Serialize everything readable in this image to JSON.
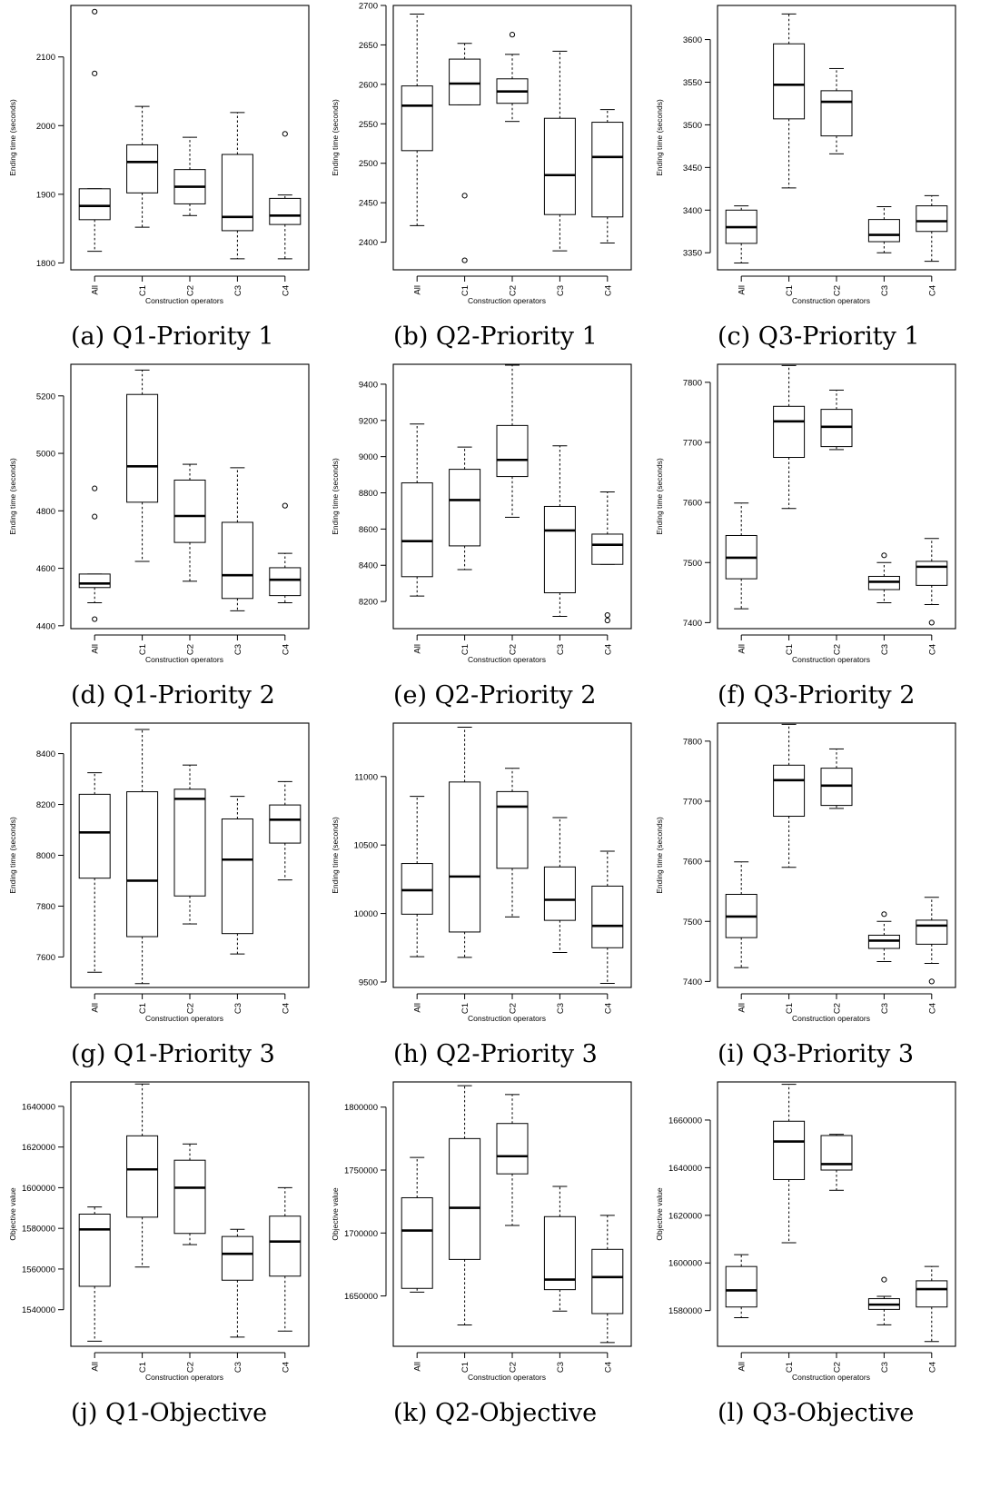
{
  "figure": {
    "panels": [
      {
        "id": "a",
        "caption": "(a) Q1-Priority 1"
      },
      {
        "id": "b",
        "caption": "(b) Q2-Priority 1"
      },
      {
        "id": "c",
        "caption": "(c) Q3-Priority 1"
      },
      {
        "id": "d",
        "caption": "(d) Q1-Priority 2"
      },
      {
        "id": "e",
        "caption": "(e) Q2-Priority 2"
      },
      {
        "id": "f",
        "caption": "(f) Q3-Priority 2"
      },
      {
        "id": "g",
        "caption": "(g) Q1-Priority 3"
      },
      {
        "id": "h",
        "caption": "(h) Q2-Priority 3"
      },
      {
        "id": "i",
        "caption": "(i) Q3-Priority 3"
      },
      {
        "id": "j",
        "caption": "(j) Q1-Objective"
      },
      {
        "id": "k",
        "caption": "(k) Q2-Objective"
      },
      {
        "id": "l",
        "caption": "(l) Q3-Objective"
      }
    ]
  },
  "chart_data": [
    {
      "type": "box",
      "ylabel": "Ending time (seconds)",
      "xlabel": "Construction operators",
      "categories": [
        "All",
        "C1",
        "C2",
        "C3",
        "C4"
      ],
      "ylim": [
        1790,
        2175
      ],
      "yticks": [
        1800,
        1900,
        2000,
        2100
      ],
      "boxes": [
        {
          "whislo": 1817,
          "q1": 1863,
          "med": 1883,
          "q3": 1908,
          "whishi": 1908,
          "fliers": [
            2076,
            2166
          ]
        },
        {
          "whislo": 1852,
          "q1": 1902,
          "med": 1947,
          "q3": 1972,
          "whishi": 2028,
          "fliers": []
        },
        {
          "whislo": 1869,
          "q1": 1886,
          "med": 1911,
          "q3": 1936,
          "whishi": 1983,
          "fliers": []
        },
        {
          "whislo": 1806,
          "q1": 1847,
          "med": 1867,
          "q3": 1958,
          "whishi": 2019,
          "fliers": []
        },
        {
          "whislo": 1806,
          "q1": 1856,
          "med": 1869,
          "q3": 1894,
          "whishi": 1899,
          "fliers": [
            1988
          ]
        }
      ]
    },
    {
      "type": "box",
      "ylabel": "Ending time (seconds)",
      "xlabel": "Construction operators",
      "categories": [
        "All",
        "C1",
        "C2",
        "C3",
        "C4"
      ],
      "ylim": [
        2365,
        2700
      ],
      "yticks": [
        2400,
        2450,
        2500,
        2550,
        2600,
        2650,
        2700
      ],
      "boxes": [
        {
          "whislo": 2421,
          "q1": 2516,
          "med": 2573,
          "q3": 2598,
          "whishi": 2689,
          "fliers": []
        },
        {
          "whislo": 2574,
          "q1": 2574,
          "med": 2601,
          "q3": 2632,
          "whishi": 2652,
          "fliers": [
            2459,
            2377
          ]
        },
        {
          "whislo": 2553,
          "q1": 2576,
          "med": 2591,
          "q3": 2607,
          "whishi": 2638,
          "fliers": [
            2663
          ]
        },
        {
          "whislo": 2389,
          "q1": 2435,
          "med": 2485,
          "q3": 2557,
          "whishi": 2642,
          "fliers": []
        },
        {
          "whislo": 2399,
          "q1": 2432,
          "med": 2508,
          "q3": 2552,
          "whishi": 2568,
          "fliers": []
        }
      ]
    },
    {
      "type": "box",
      "ylabel": "Ending time (seconds)",
      "xlabel": "Construction operators",
      "categories": [
        "All",
        "C1",
        "C2",
        "C3",
        "C4"
      ],
      "ylim": [
        3330,
        3640
      ],
      "yticks": [
        3350,
        3400,
        3450,
        3500,
        3550,
        3600
      ],
      "boxes": [
        {
          "whislo": 3338,
          "q1": 3361,
          "med": 3380,
          "q3": 3400,
          "whishi": 3405,
          "fliers": []
        },
        {
          "whislo": 3426,
          "q1": 3507,
          "med": 3547,
          "q3": 3595,
          "whishi": 3630,
          "fliers": []
        },
        {
          "whislo": 3466,
          "q1": 3487,
          "med": 3527,
          "q3": 3540,
          "whishi": 3566,
          "fliers": []
        },
        {
          "whislo": 3350,
          "q1": 3363,
          "med": 3371,
          "q3": 3389,
          "whishi": 3404,
          "fliers": []
        },
        {
          "whislo": 3340,
          "q1": 3375,
          "med": 3387,
          "q3": 3405,
          "whishi": 3417,
          "fliers": []
        }
      ]
    },
    {
      "type": "box",
      "ylabel": "Ending time (seconds)",
      "xlabel": "Construction operators",
      "categories": [
        "All",
        "C1",
        "C2",
        "C3",
        "C4"
      ],
      "ylim": [
        4390,
        5310
      ],
      "yticks": [
        4400,
        4600,
        4800,
        5000,
        5200
      ],
      "boxes": [
        {
          "whislo": 4480,
          "q1": 4533,
          "med": 4547,
          "q3": 4580,
          "whishi": 4580,
          "fliers": [
            4878,
            4780,
            4423
          ]
        },
        {
          "whislo": 4624,
          "q1": 4830,
          "med": 4955,
          "q3": 5205,
          "whishi": 5290,
          "fliers": []
        },
        {
          "whislo": 4555,
          "q1": 4690,
          "med": 4782,
          "q3": 4907,
          "whishi": 4962,
          "fliers": []
        },
        {
          "whislo": 4452,
          "q1": 4495,
          "med": 4576,
          "q3": 4760,
          "whishi": 4950,
          "fliers": []
        },
        {
          "whislo": 4480,
          "q1": 4505,
          "med": 4560,
          "q3": 4602,
          "whishi": 4652,
          "fliers": [
            4818
          ]
        }
      ]
    },
    {
      "type": "box",
      "ylabel": "Ending time (seconds)",
      "xlabel": "Construction operators",
      "categories": [
        "All",
        "C1",
        "C2",
        "C3",
        "C4"
      ],
      "ylim": [
        8050,
        9510
      ],
      "yticks": [
        8200,
        8400,
        8600,
        8800,
        9000,
        9200,
        9400
      ],
      "boxes": [
        {
          "whislo": 8230,
          "q1": 8337,
          "med": 8533,
          "q3": 8855,
          "whishi": 9180,
          "fliers": []
        },
        {
          "whislo": 8376,
          "q1": 8507,
          "med": 8760,
          "q3": 8930,
          "whishi": 9053,
          "fliers": []
        },
        {
          "whislo": 8665,
          "q1": 8890,
          "med": 8982,
          "q3": 9172,
          "whishi": 9505,
          "fliers": []
        },
        {
          "whislo": 8118,
          "q1": 8248,
          "med": 8592,
          "q3": 8725,
          "whishi": 9060,
          "fliers": []
        },
        {
          "whislo": 8405,
          "q1": 8405,
          "med": 8513,
          "q3": 8572,
          "whishi": 8805,
          "fliers": [
            8125,
            8095
          ]
        }
      ]
    },
    {
      "type": "box",
      "ylabel": "Ending time (seconds)",
      "xlabel": "Construction operators",
      "categories": [
        "All",
        "C1",
        "C2",
        "C3",
        "C4"
      ],
      "ylim": [
        7390,
        7830
      ],
      "yticks": [
        7400,
        7500,
        7600,
        7700,
        7800
      ],
      "boxes": [
        {
          "whislo": 7423,
          "q1": 7473,
          "med": 7508,
          "q3": 7545,
          "whishi": 7599,
          "fliers": []
        },
        {
          "whislo": 7590,
          "q1": 7675,
          "med": 7735,
          "q3": 7760,
          "whishi": 7828,
          "fliers": []
        },
        {
          "whislo": 7688,
          "q1": 7693,
          "med": 7726,
          "q3": 7755,
          "whishi": 7787,
          "fliers": []
        },
        {
          "whislo": 7433,
          "q1": 7455,
          "med": 7468,
          "q3": 7477,
          "whishi": 7500,
          "fliers": [
            7512
          ]
        },
        {
          "whislo": 7430,
          "q1": 7462,
          "med": 7493,
          "q3": 7502,
          "whishi": 7540,
          "fliers": [
            7400
          ]
        }
      ]
    },
    {
      "type": "box",
      "ylabel": "Ending time (seconds)",
      "xlabel": "Construction operators",
      "categories": [
        "All",
        "C1",
        "C2",
        "C3",
        "C4"
      ],
      "ylim": [
        7480,
        8520
      ],
      "yticks": [
        7600,
        7800,
        8000,
        8200,
        8400
      ],
      "boxes": [
        {
          "whislo": 7540,
          "q1": 7910,
          "med": 8090,
          "q3": 8240,
          "whishi": 8325,
          "fliers": []
        },
        {
          "whislo": 7495,
          "q1": 7680,
          "med": 7900,
          "q3": 8250,
          "whishi": 8495,
          "fliers": []
        },
        {
          "whislo": 7730,
          "q1": 7840,
          "med": 8222,
          "q3": 8260,
          "whishi": 8355,
          "fliers": []
        },
        {
          "whislo": 7612,
          "q1": 7692,
          "med": 7983,
          "q3": 8143,
          "whishi": 8232,
          "fliers": []
        },
        {
          "whislo": 7903,
          "q1": 8048,
          "med": 8140,
          "q3": 8198,
          "whishi": 8290,
          "fliers": []
        }
      ]
    },
    {
      "type": "box",
      "ylabel": "Ending time (seconds)",
      "xlabel": "Construction operators",
      "categories": [
        "All",
        "C1",
        "C2",
        "C3",
        "C4"
      ],
      "ylim": [
        9460,
        11390
      ],
      "yticks": [
        9500,
        10000,
        10500,
        11000
      ],
      "boxes": [
        {
          "whislo": 9685,
          "q1": 9995,
          "med": 10170,
          "q3": 10365,
          "whishi": 10855,
          "fliers": []
        },
        {
          "whislo": 9680,
          "q1": 9865,
          "med": 10270,
          "q3": 10960,
          "whishi": 11360,
          "fliers": []
        },
        {
          "whislo": 9975,
          "q1": 10330,
          "med": 10780,
          "q3": 10890,
          "whishi": 11060,
          "fliers": []
        },
        {
          "whislo": 9715,
          "q1": 9950,
          "med": 10100,
          "q3": 10340,
          "whishi": 10700,
          "fliers": []
        },
        {
          "whislo": 9490,
          "q1": 9750,
          "med": 9910,
          "q3": 10200,
          "whishi": 10455,
          "fliers": []
        }
      ]
    },
    {
      "type": "box",
      "ylabel": "Ending time (seconds)",
      "xlabel": "Construction operators",
      "categories": [
        "All",
        "C1",
        "C2",
        "C3",
        "C4"
      ],
      "ylim": [
        7390,
        7830
      ],
      "yticks": [
        7400,
        7500,
        7600,
        7700,
        7800
      ],
      "boxes": [
        {
          "whislo": 7423,
          "q1": 7473,
          "med": 7508,
          "q3": 7545,
          "whishi": 7599,
          "fliers": []
        },
        {
          "whislo": 7590,
          "q1": 7675,
          "med": 7735,
          "q3": 7760,
          "whishi": 7828,
          "fliers": []
        },
        {
          "whislo": 7688,
          "q1": 7693,
          "med": 7726,
          "q3": 7755,
          "whishi": 7787,
          "fliers": []
        },
        {
          "whislo": 7433,
          "q1": 7455,
          "med": 7468,
          "q3": 7477,
          "whishi": 7500,
          "fliers": [
            7512
          ]
        },
        {
          "whislo": 7430,
          "q1": 7462,
          "med": 7493,
          "q3": 7502,
          "whishi": 7540,
          "fliers": [
            7400
          ]
        }
      ]
    },
    {
      "type": "box",
      "ylabel": "Objective value",
      "xlabel": "Construction operators",
      "categories": [
        "All",
        "C1",
        "C2",
        "C3",
        "C4"
      ],
      "ylim": [
        1522000,
        1652000
      ],
      "yticks": [
        1540000,
        1560000,
        1580000,
        1600000,
        1620000,
        1640000
      ],
      "boxes": [
        {
          "whislo": 1524500,
          "q1": 1551500,
          "med": 1579500,
          "q3": 1587000,
          "whishi": 1590500,
          "fliers": []
        },
        {
          "whislo": 1561000,
          "q1": 1585500,
          "med": 1609000,
          "q3": 1625500,
          "whishi": 1651000,
          "fliers": []
        },
        {
          "whislo": 1572000,
          "q1": 1577500,
          "med": 1600000,
          "q3": 1613500,
          "whishi": 1621500,
          "fliers": []
        },
        {
          "whislo": 1526500,
          "q1": 1554500,
          "med": 1567500,
          "q3": 1576000,
          "whishi": 1579500,
          "fliers": []
        },
        {
          "whislo": 1529500,
          "q1": 1556500,
          "med": 1573500,
          "q3": 1586000,
          "whishi": 1600000,
          "fliers": []
        }
      ]
    },
    {
      "type": "box",
      "ylabel": "Objective value",
      "xlabel": "Construction operators",
      "categories": [
        "All",
        "C1",
        "C2",
        "C3",
        "C4"
      ],
      "ylim": [
        1610000,
        1820000
      ],
      "yticks": [
        1650000,
        1700000,
        1750000,
        1800000
      ],
      "boxes": [
        {
          "whislo": 1653000,
          "q1": 1656000,
          "med": 1702000,
          "q3": 1728000,
          "whishi": 1760000,
          "fliers": []
        },
        {
          "whislo": 1627000,
          "q1": 1679000,
          "med": 1720000,
          "q3": 1775000,
          "whishi": 1817000,
          "fliers": []
        },
        {
          "whislo": 1706000,
          "q1": 1747000,
          "med": 1761000,
          "q3": 1787000,
          "whishi": 1810000,
          "fliers": []
        },
        {
          "whislo": 1638000,
          "q1": 1655000,
          "med": 1663000,
          "q3": 1713000,
          "whishi": 1737000,
          "fliers": []
        },
        {
          "whislo": 1613000,
          "q1": 1636000,
          "med": 1665000,
          "q3": 1687000,
          "whishi": 1714000,
          "fliers": []
        }
      ]
    },
    {
      "type": "box",
      "ylabel": "Objective value",
      "xlabel": "Construction operators",
      "categories": [
        "All",
        "C1",
        "C2",
        "C3",
        "C4"
      ],
      "ylim": [
        1565000,
        1676000
      ],
      "yticks": [
        1580000,
        1600000,
        1620000,
        1640000,
        1660000
      ],
      "boxes": [
        {
          "whislo": 1577000,
          "q1": 1581500,
          "med": 1588500,
          "q3": 1598500,
          "whishi": 1603500,
          "fliers": []
        },
        {
          "whislo": 1608500,
          "q1": 1635000,
          "med": 1651000,
          "q3": 1659500,
          "whishi": 1675000,
          "fliers": []
        },
        {
          "whislo": 1630500,
          "q1": 1639000,
          "med": 1641500,
          "q3": 1653500,
          "whishi": 1654000,
          "fliers": []
        },
        {
          "whislo": 1574000,
          "q1": 1580500,
          "med": 1582500,
          "q3": 1585000,
          "whishi": 1586000,
          "fliers": [
            1593000
          ]
        },
        {
          "whislo": 1567000,
          "q1": 1581500,
          "med": 1589000,
          "q3": 1592500,
          "whishi": 1598500,
          "fliers": []
        }
      ]
    }
  ]
}
